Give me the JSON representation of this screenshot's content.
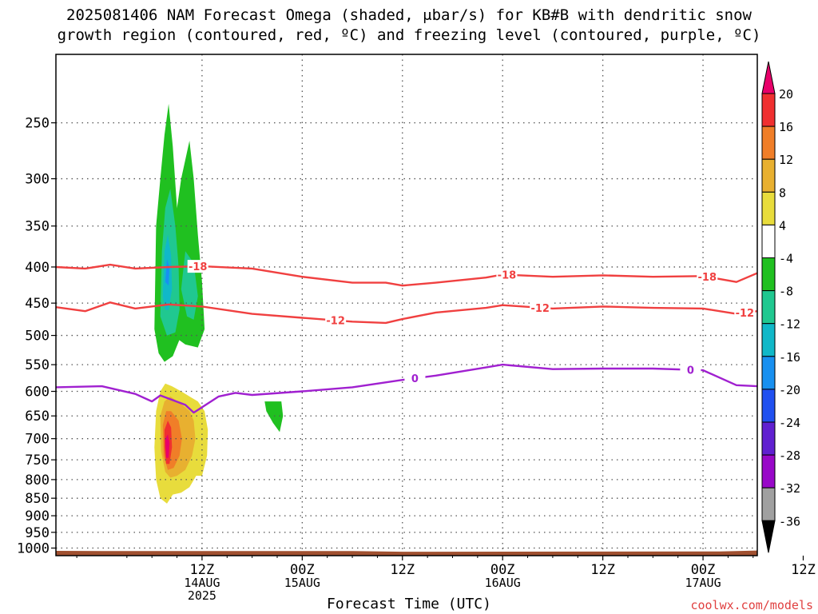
{
  "chart_data": {
    "type": "time-height",
    "title_lines": [
      "2025081406 NAM Forecast Omega (shaded, μbar/s) for KB#B with dendritic snow",
      "growth region (contoured, red, ºC) and freezing level (contoured, purple, ºC)"
    ],
    "xlabel": "Forecast Time (UTC)",
    "ylabel": "",
    "credit": "coolwx.com/models",
    "x_range_hours_from_00z_14aug": [
      -5.5,
      78.5
    ],
    "y_axis": {
      "scale": "log-pressure",
      "range_hPa": [
        1025,
        200
      ],
      "ticks": [
        250,
        300,
        350,
        400,
        450,
        500,
        550,
        600,
        650,
        700,
        750,
        800,
        850,
        900,
        950,
        1000
      ]
    },
    "x_ticks": [
      {
        "hours": 12,
        "lines": [
          "12Z",
          "14AUG",
          "2025"
        ]
      },
      {
        "hours": 24,
        "lines": [
          "00Z",
          "15AUG"
        ]
      },
      {
        "hours": 36,
        "lines": [
          "12Z"
        ]
      },
      {
        "hours": 48,
        "lines": [
          "00Z",
          "16AUG"
        ]
      },
      {
        "hours": 60,
        "lines": [
          "12Z"
        ]
      },
      {
        "hours": 72,
        "lines": [
          "00Z",
          "17AUG"
        ]
      },
      {
        "hours": 84,
        "lines": [
          "12Z"
        ]
      }
    ],
    "grid": true,
    "colorbar": {
      "labels": [
        "20",
        "16",
        "12",
        "8",
        "4",
        "-4",
        "-8",
        "-12",
        "-16",
        "-20",
        "-24",
        "-28",
        "-32",
        "-36"
      ],
      "colors": [
        "#e8006a",
        "#f03030",
        "#f07e28",
        "#e8b030",
        "#e8dc3c",
        "#ffffff",
        "#20c020",
        "#20c890",
        "#10b8c8",
        "#1890f0",
        "#2050f0",
        "#6020d0",
        "#9808c8",
        "#a0a0a0",
        "#000000"
      ]
    },
    "contours": [
      {
        "name": "-18",
        "color": "#f04040",
        "label": "-18",
        "label_hours": [
          11.5,
          48.5,
          72.5
        ],
        "x": [
          -5.5,
          -2,
          1,
          4,
          8,
          12,
          18,
          24,
          30,
          34,
          36,
          40,
          46,
          48,
          54,
          60,
          66,
          72,
          76,
          78.5
        ],
        "y": [
          400,
          402,
          397,
          402,
          400,
          399,
          402,
          413,
          421,
          421,
          425,
          421,
          414,
          410,
          413,
          411,
          413,
          412,
          420,
          408
        ]
      },
      {
        "name": "-12",
        "color": "#f04040",
        "label": "-12",
        "label_hours": [
          28,
          52.5,
          77
        ],
        "x": [
          -5.5,
          -2,
          1,
          4,
          8,
          12,
          18,
          24,
          30,
          34,
          36,
          40,
          46,
          48,
          54,
          60,
          66,
          72,
          76,
          78.5
        ],
        "y": [
          456,
          462,
          449,
          458,
          452,
          455,
          466,
          472,
          478,
          480,
          474,
          464,
          457,
          453,
          458,
          455,
          457,
          458,
          466,
          462
        ]
      },
      {
        "name": "0",
        "color": "#a020d0",
        "label": "0",
        "label_hours": [
          37.5,
          70.5
        ],
        "x": [
          -5.5,
          0,
          4,
          6,
          7,
          10,
          11,
          14,
          16,
          18,
          24,
          30,
          36,
          40,
          46,
          48,
          54,
          60,
          66,
          72,
          76,
          78.5
        ],
        "y": [
          592,
          590,
          605,
          620,
          608,
          627,
          643,
          610,
          603,
          607,
          600,
          592,
          578,
          570,
          555,
          550,
          558,
          557,
          557,
          560,
          588,
          590
        ]
      }
    ],
    "omega_shading": [
      {
        "value": -4,
        "color": "#20c020",
        "polys": [
          [
            [
              6.3,
              490
            ],
            [
              6.5,
              350
            ],
            [
              7,
              300
            ],
            [
              7.5,
              260
            ],
            [
              8,
              235
            ],
            [
              8.5,
              270
            ],
            [
              9,
              330
            ],
            [
              9.5,
              380
            ],
            [
              9.8,
              430
            ],
            [
              9.5,
              500
            ],
            [
              8.5,
              535
            ],
            [
              7.5,
              545
            ],
            [
              6.8,
              530
            ]
          ],
          [
            [
              8.5,
              480
            ],
            [
              8.7,
              350
            ],
            [
              9.5,
              300
            ],
            [
              10.5,
              265
            ],
            [
              11,
              300
            ],
            [
              11.5,
              360
            ],
            [
              12,
              420
            ],
            [
              12.3,
              490
            ],
            [
              11.5,
              520
            ],
            [
              10,
              515
            ],
            [
              9,
              505
            ]
          ],
          [
            [
              19.5,
              620
            ],
            [
              21.5,
              620
            ],
            [
              21.7,
              650
            ],
            [
              21.3,
              685
            ],
            [
              20.5,
              665
            ],
            [
              19.7,
              640
            ]
          ]
        ]
      },
      {
        "value": -8,
        "color": "#20c890",
        "polys": [
          [
            [
              7,
              470
            ],
            [
              7.2,
              380
            ],
            [
              7.6,
              330
            ],
            [
              8.2,
              310
            ],
            [
              8.8,
              350
            ],
            [
              9.2,
              400
            ],
            [
              9.3,
              460
            ],
            [
              8.8,
              495
            ],
            [
              7.8,
              500
            ]
          ],
          [
            [
              9.5,
              430
            ],
            [
              10,
              380
            ],
            [
              11,
              395
            ],
            [
              11.5,
              440
            ],
            [
              11,
              475
            ],
            [
              10.2,
              470
            ]
          ]
        ]
      },
      {
        "value": -12,
        "color": "#10b8c8",
        "polys": [
          [
            [
              7.3,
              440
            ],
            [
              7.5,
              380
            ],
            [
              7.9,
              360
            ],
            [
              8.3,
              385
            ],
            [
              8.4,
              430
            ],
            [
              8,
              460
            ],
            [
              7.6,
              460
            ]
          ]
        ]
      },
      {
        "value": -16,
        "color": "#1890f0",
        "polys": [
          [
            [
              7.6,
              420
            ],
            [
              7.8,
              390
            ],
            [
              8.1,
              400
            ],
            [
              8,
              425
            ]
          ]
        ]
      },
      {
        "value": 4,
        "color": "#e8dc3c",
        "polys": [
          [
            [
              6.5,
              640
            ],
            [
              7,
              600
            ],
            [
              7.6,
              585
            ],
            [
              8.4,
              590
            ],
            [
              9.5,
              600
            ],
            [
              10.5,
              610
            ],
            [
              11.5,
              620
            ],
            [
              12.3,
              640
            ],
            [
              12.7,
              680
            ],
            [
              12.6,
              740
            ],
            [
              12,
              790
            ],
            [
              11.3,
              790
            ],
            [
              10.5,
              820
            ],
            [
              9.5,
              835
            ],
            [
              8.5,
              840
            ],
            [
              7.8,
              865
            ],
            [
              7,
              850
            ],
            [
              6.5,
              800
            ],
            [
              6.3,
              720
            ]
          ]
        ]
      },
      {
        "value": 8,
        "color": "#e8b030",
        "polys": [
          [
            [
              7,
              650
            ],
            [
              7.5,
              620
            ],
            [
              8.2,
              610
            ],
            [
              9.5,
              625
            ],
            [
              10.5,
              640
            ],
            [
              11,
              660
            ],
            [
              11.2,
              700
            ],
            [
              10.8,
              740
            ],
            [
              10,
              775
            ],
            [
              9,
              790
            ],
            [
              8.2,
              795
            ],
            [
              7.6,
              780
            ],
            [
              7.1,
              730
            ]
          ]
        ]
      },
      {
        "value": 12,
        "color": "#f07e28",
        "polys": [
          [
            [
              7.3,
              670
            ],
            [
              7.7,
              640
            ],
            [
              8.3,
              640
            ],
            [
              9.2,
              660
            ],
            [
              9.6,
              700
            ],
            [
              9.3,
              740
            ],
            [
              8.6,
              770
            ],
            [
              7.9,
              775
            ],
            [
              7.4,
              740
            ]
          ]
        ]
      },
      {
        "value": 16,
        "color": "#f03030",
        "polys": [
          [
            [
              7.5,
              680
            ],
            [
              7.9,
              660
            ],
            [
              8.3,
              675
            ],
            [
              8.4,
              720
            ],
            [
              8.1,
              760
            ],
            [
              7.7,
              760
            ],
            [
              7.5,
              720
            ]
          ]
        ]
      },
      {
        "value": 20,
        "color": "#e8006a",
        "polys": [
          [
            [
              7.6,
              700
            ],
            [
              7.9,
              690
            ],
            [
              8.1,
              710
            ],
            [
              8,
              745
            ],
            [
              7.7,
              745
            ]
          ]
        ]
      }
    ],
    "ground": {
      "color": "#a05030",
      "x": [
        -5.5,
        0,
        30,
        36,
        40,
        74,
        78.5
      ],
      "top_hPa": [
        1009,
        1010,
        1010,
        1012,
        1012,
        1011,
        1008
      ]
    }
  }
}
